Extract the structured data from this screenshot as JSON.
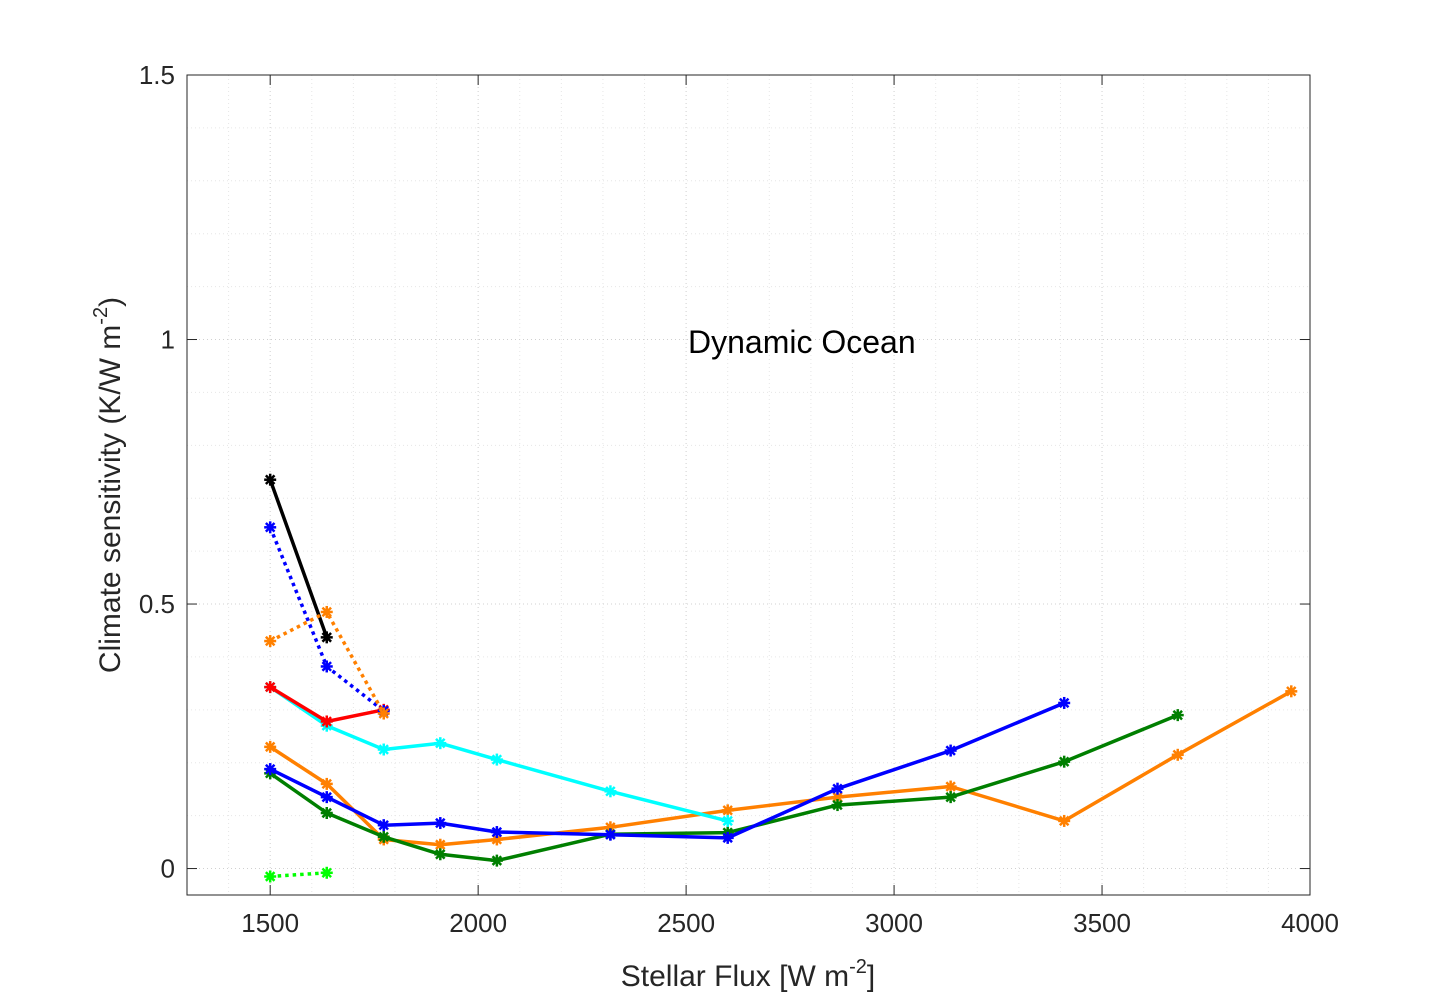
{
  "chart_data": {
    "type": "line",
    "title": "",
    "annotation": "Dynamic Ocean",
    "xlabel": {
      "main": "Stellar Flux [W m",
      "sup": "-2",
      "end": "]"
    },
    "ylabel": {
      "main": "Climate sensitivity (K/W m",
      "sup": "-2",
      "end": ")"
    },
    "xlim": [
      1300,
      4000
    ],
    "ylim": [
      -0.05,
      1.5
    ],
    "xticks": [
      1500,
      2000,
      2500,
      3000,
      3500,
      4000
    ],
    "yticks": [
      0,
      0.5,
      1,
      1.5
    ],
    "xtick_labels": [
      "1500",
      "2000",
      "2500",
      "3000",
      "3500",
      "4000"
    ],
    "ytick_labels": [
      "0",
      "0.5",
      "1",
      "1.5"
    ],
    "grid": true,
    "series": [
      {
        "name": "orange-solid",
        "color": "#FF8000",
        "dash": "solid",
        "x": [
          1500,
          1636,
          1773,
          1909,
          2045,
          2318,
          2600,
          2864,
          3136,
          3409,
          3682,
          3955
        ],
        "y": [
          0.23,
          0.16,
          0.055,
          0.045,
          0.055,
          0.078,
          0.11,
          0.135,
          0.155,
          0.09,
          0.215,
          0.335
        ]
      },
      {
        "name": "green-solid",
        "color": "#007F00",
        "dash": "solid",
        "x": [
          1500,
          1636,
          1773,
          1909,
          2045,
          2318,
          2600,
          2864,
          3136,
          3409,
          3682
        ],
        "y": [
          0.18,
          0.105,
          0.06,
          0.027,
          0.015,
          0.065,
          0.068,
          0.12,
          0.135,
          0.202,
          0.29
        ]
      },
      {
        "name": "blue-solid",
        "color": "#0000FF",
        "dash": "solid",
        "x": [
          1500,
          1636,
          1773,
          1909,
          2045,
          2318,
          2600,
          2864,
          3136,
          3409
        ],
        "y": [
          0.188,
          0.135,
          0.082,
          0.086,
          0.069,
          0.064,
          0.058,
          0.151,
          0.223,
          0.313
        ]
      },
      {
        "name": "cyan-solid",
        "color": "#00FFFF",
        "dash": "solid",
        "x": [
          1500,
          1636,
          1773,
          1909,
          2045,
          2318,
          2600
        ],
        "y": [
          0.343,
          0.27,
          0.225,
          0.237,
          0.206,
          0.146,
          0.09
        ]
      },
      {
        "name": "red-solid",
        "color": "#FF0000",
        "dash": "solid",
        "x": [
          1500,
          1636,
          1773
        ],
        "y": [
          0.343,
          0.278,
          0.3
        ]
      },
      {
        "name": "black-solid",
        "color": "#000000",
        "dash": "solid",
        "x": [
          1500,
          1636
        ],
        "y": [
          0.735,
          0.437
        ]
      },
      {
        "name": "blue-dotted",
        "color": "#0000FF",
        "dash": "dotted",
        "x": [
          1500,
          1636,
          1773
        ],
        "y": [
          0.645,
          0.382,
          0.298
        ]
      },
      {
        "name": "orange-dotted",
        "color": "#FF8000",
        "dash": "dotted",
        "x": [
          1500,
          1636,
          1773
        ],
        "y": [
          0.43,
          0.485,
          0.293
        ]
      },
      {
        "name": "lime-dotted",
        "color": "#00FF00",
        "dash": "dotted",
        "x": [
          1500,
          1636
        ],
        "y": [
          -0.015,
          -0.008
        ]
      }
    ]
  }
}
